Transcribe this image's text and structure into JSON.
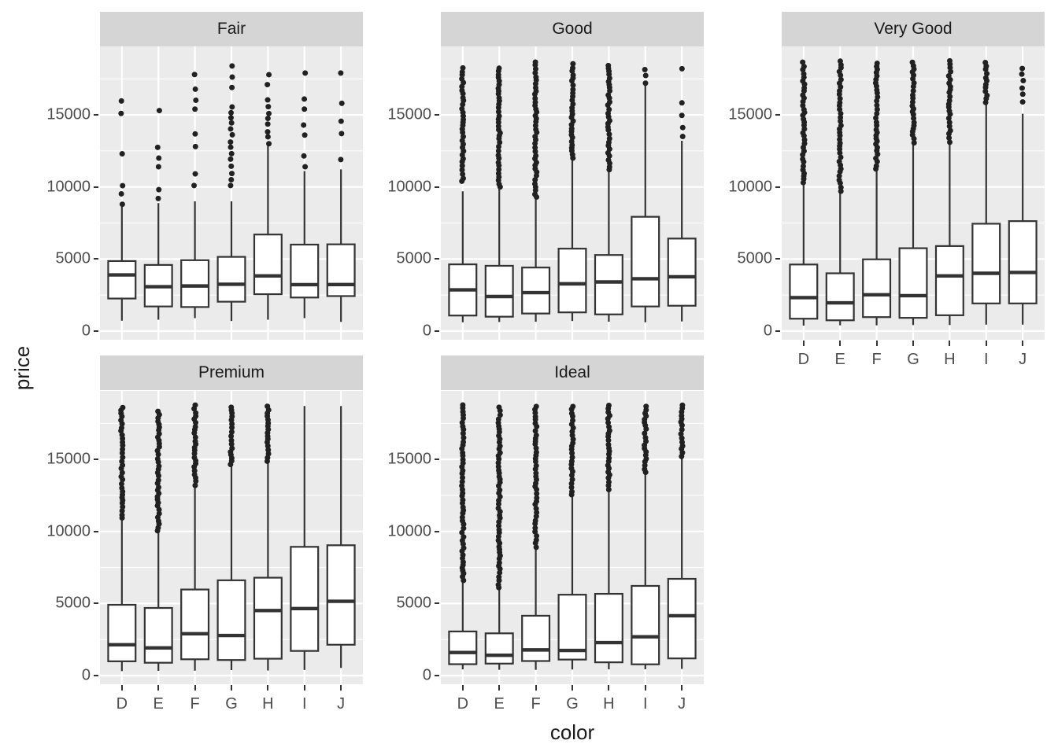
{
  "chart_data": {
    "type": "boxplot",
    "title": "",
    "xlabel": "color",
    "ylabel": "price",
    "legend": "none",
    "grid": "on",
    "categories": [
      "D",
      "E",
      "F",
      "G",
      "H",
      "I",
      "J"
    ],
    "y_ticks": [
      {
        "value": 0,
        "label": "0"
      },
      {
        "value": 5000,
        "label": "5000"
      },
      {
        "value": 10000,
        "label": "10000"
      },
      {
        "value": 15000,
        "label": "15000"
      }
    ],
    "y_minor_ticks": [
      2500,
      7500,
      12500,
      17500
    ],
    "ylim": [
      -600,
      19750
    ],
    "colors": {
      "panel_bg": "#EBEBEB",
      "strip_bg": "#D5D5D5",
      "grid_major": "#FFFFFF",
      "grid_minor": "#FFFFFF",
      "box_stroke": "#333333",
      "box_fill": "#FFFFFF",
      "outlier_dot": "#212121",
      "tick_text": "#4D4D4D",
      "strip_text": "#1A1A1A",
      "axis_title_text": "#1A1A1A"
    },
    "facets": [
      {
        "label": "Fair",
        "boxes": [
          {
            "category": "D",
            "whisker_low": 720,
            "q1": 2260,
            "median": 3900,
            "q3": 4860,
            "whisker_high": 8640,
            "outliers": [
              {
                "from": 8800,
                "to": 10300,
                "density": "sparse"
              },
              {
                "from": 12300,
                "to": 12900,
                "density": "sparse"
              },
              {
                "from": 15100,
                "to": 16400,
                "density": "sparse"
              }
            ]
          },
          {
            "category": "E",
            "whisker_low": 790,
            "q1": 1710,
            "median": 3080,
            "q3": 4590,
            "whisker_high": 8880,
            "outliers": [
              {
                "from": 9200,
                "to": 10300,
                "density": "sparse"
              },
              {
                "from": 11400,
                "to": 13300,
                "density": "sparse"
              },
              {
                "from": 15300,
                "to": 15800,
                "density": "sparse"
              }
            ]
          },
          {
            "category": "F",
            "whisker_low": 900,
            "q1": 1670,
            "median": 3130,
            "q3": 4920,
            "whisker_high": 9000,
            "outliers": [
              {
                "from": 10100,
                "to": 11600,
                "density": "sparse"
              },
              {
                "from": 12800,
                "to": 14300,
                "density": "sparse"
              },
              {
                "from": 15400,
                "to": 17000,
                "density": "sparse"
              },
              {
                "from": 17800,
                "to": 18400,
                "density": "sparse"
              }
            ]
          },
          {
            "category": "G",
            "whisker_low": 700,
            "q1": 2040,
            "median": 3250,
            "q3": 5150,
            "whisker_high": 9000,
            "outliers": [
              {
                "from": 10100,
                "to": 15900,
                "density": "medium"
              },
              {
                "from": 16900,
                "to": 18600,
                "density": "sparse"
              }
            ]
          },
          {
            "category": "H",
            "whisker_low": 790,
            "q1": 2560,
            "median": 3830,
            "q3": 6700,
            "whisker_high": 12880,
            "outliers": [
              {
                "from": 13000,
                "to": 16400,
                "density": "medium"
              },
              {
                "from": 17100,
                "to": 18600,
                "density": "sparse"
              }
            ]
          },
          {
            "category": "I",
            "whisker_low": 900,
            "q1": 2330,
            "median": 3220,
            "q3": 6000,
            "whisker_high": 11100,
            "outliers": [
              {
                "from": 11400,
                "to": 12300,
                "density": "sparse"
              },
              {
                "from": 13600,
                "to": 14400,
                "density": "sparse"
              },
              {
                "from": 15400,
                "to": 16300,
                "density": "sparse"
              },
              {
                "from": 17900,
                "to": 18300,
                "density": "sparse"
              }
            ]
          },
          {
            "category": "J",
            "whisker_low": 640,
            "q1": 2430,
            "median": 3230,
            "q3": 6020,
            "whisker_high": 11220,
            "outliers": [
              {
                "from": 11900,
                "to": 12300,
                "density": "sparse"
              },
              {
                "from": 13700,
                "to": 15100,
                "density": "sparse"
              },
              {
                "from": 15800,
                "to": 16300,
                "density": "sparse"
              },
              {
                "from": 17900,
                "to": 18300,
                "density": "sparse"
              }
            ]
          }
        ]
      },
      {
        "label": "Good",
        "boxes": [
          {
            "category": "D",
            "whisker_low": 610,
            "q1": 1080,
            "median": 2860,
            "q3": 4630,
            "whisker_high": 9700,
            "outliers": [
              {
                "from": 10400,
                "to": 18500,
                "density": "dense"
              }
            ]
          },
          {
            "category": "E",
            "whisker_low": 630,
            "q1": 1000,
            "median": 2400,
            "q3": 4530,
            "whisker_high": 9900,
            "outliers": [
              {
                "from": 10000,
                "to": 18300,
                "density": "dense"
              }
            ]
          },
          {
            "category": "F",
            "whisker_low": 650,
            "q1": 1220,
            "median": 2670,
            "q3": 4410,
            "whisker_high": 9200,
            "outliers": [
              {
                "from": 9300,
                "to": 18700,
                "density": "dense"
              }
            ]
          },
          {
            "category": "G",
            "whisker_low": 700,
            "q1": 1300,
            "median": 3280,
            "q3": 5720,
            "whisker_high": 11900,
            "outliers": [
              {
                "from": 12000,
                "to": 18700,
                "density": "dense"
              }
            ]
          },
          {
            "category": "H",
            "whisker_low": 650,
            "q1": 1160,
            "median": 3410,
            "q3": 5280,
            "whisker_high": 11100,
            "outliers": [
              {
                "from": 11200,
                "to": 18600,
                "density": "dense"
              }
            ]
          },
          {
            "category": "I",
            "whisker_low": 610,
            "q1": 1710,
            "median": 3630,
            "q3": 7930,
            "whisker_high": 17100,
            "outliers": [
              {
                "from": 17200,
                "to": 18500,
                "density": "medium"
              }
            ]
          },
          {
            "category": "J",
            "whisker_low": 670,
            "q1": 1760,
            "median": 3770,
            "q3": 6420,
            "whisker_high": 13200,
            "outliers": [
              {
                "from": 13500,
                "to": 16300,
                "density": "sparse"
              },
              {
                "from": 18200,
                "to": 18400,
                "density": "sparse"
              }
            ]
          }
        ]
      },
      {
        "label": "Very Good",
        "boxes": [
          {
            "category": "D",
            "whisker_low": 380,
            "q1": 860,
            "median": 2320,
            "q3": 4620,
            "whisker_high": 10200,
            "outliers": [
              {
                "from": 10300,
                "to": 18820,
                "density": "dense"
              }
            ]
          },
          {
            "category": "E",
            "whisker_low": 400,
            "q1": 750,
            "median": 1960,
            "q3": 4010,
            "whisker_high": 9600,
            "outliers": [
              {
                "from": 9700,
                "to": 18820,
                "density": "dense"
              }
            ]
          },
          {
            "category": "F",
            "whisker_low": 400,
            "q1": 970,
            "median": 2520,
            "q3": 4980,
            "whisker_high": 11150,
            "outliers": [
              {
                "from": 11250,
                "to": 18820,
                "density": "dense"
              }
            ]
          },
          {
            "category": "G",
            "whisker_low": 420,
            "q1": 920,
            "median": 2460,
            "q3": 5750,
            "whisker_high": 12960,
            "outliers": [
              {
                "from": 13060,
                "to": 18820,
                "density": "dense"
              }
            ]
          },
          {
            "category": "H",
            "whisker_low": 420,
            "q1": 1100,
            "median": 3830,
            "q3": 5900,
            "whisker_high": 13000,
            "outliers": [
              {
                "from": 13100,
                "to": 18820,
                "density": "dense"
              }
            ]
          },
          {
            "category": "I",
            "whisker_low": 450,
            "q1": 1920,
            "median": 4010,
            "q3": 7450,
            "whisker_high": 15760,
            "outliers": [
              {
                "from": 15860,
                "to": 18820,
                "density": "dense"
              }
            ]
          },
          {
            "category": "J",
            "whisker_low": 450,
            "q1": 1920,
            "median": 4070,
            "q3": 7630,
            "whisker_high": 15080,
            "outliers": [
              {
                "from": 15900,
                "to": 18500,
                "density": "medium"
              }
            ]
          }
        ]
      },
      {
        "label": "Premium",
        "boxes": [
          {
            "category": "D",
            "whisker_low": 310,
            "q1": 990,
            "median": 2140,
            "q3": 4910,
            "whisker_high": 10840,
            "outliers": [
              {
                "from": 10940,
                "to": 18700,
                "density": "dense"
              }
            ]
          },
          {
            "category": "E",
            "whisker_low": 330,
            "q1": 890,
            "median": 1920,
            "q3": 4690,
            "whisker_high": 9950,
            "outliers": [
              {
                "from": 10050,
                "to": 18500,
                "density": "dense"
              }
            ]
          },
          {
            "category": "F",
            "whisker_low": 340,
            "q1": 1130,
            "median": 2900,
            "q3": 5970,
            "whisker_high": 13090,
            "outliers": [
              {
                "from": 13190,
                "to": 18820,
                "density": "dense"
              }
            ]
          },
          {
            "category": "G",
            "whisker_low": 380,
            "q1": 1080,
            "median": 2780,
            "q3": 6610,
            "whisker_high": 14550,
            "outliers": [
              {
                "from": 14650,
                "to": 18750,
                "density": "dense"
              }
            ]
          },
          {
            "category": "H",
            "whisker_low": 350,
            "q1": 1170,
            "median": 4510,
            "q3": 6790,
            "whisker_high": 14770,
            "outliers": [
              {
                "from": 14870,
                "to": 18820,
                "density": "dense"
              }
            ]
          },
          {
            "category": "I",
            "whisker_low": 390,
            "q1": 1710,
            "median": 4650,
            "q3": 8930,
            "whisker_high": 18700,
            "outliers": []
          },
          {
            "category": "J",
            "whisker_low": 530,
            "q1": 2140,
            "median": 5150,
            "q3": 9040,
            "whisker_high": 18700,
            "outliers": []
          }
        ]
      },
      {
        "label": "Ideal",
        "boxes": [
          {
            "category": "D",
            "whisker_low": 430,
            "q1": 790,
            "median": 1600,
            "q3": 3060,
            "whisker_high": 6500,
            "outliers": [
              {
                "from": 6600,
                "to": 18820,
                "density": "dense"
              }
            ]
          },
          {
            "category": "E",
            "whisker_low": 400,
            "q1": 830,
            "median": 1410,
            "q3": 2930,
            "whisker_high": 6000,
            "outliers": [
              {
                "from": 6100,
                "to": 18820,
                "density": "dense"
              }
            ]
          },
          {
            "category": "F",
            "whisker_low": 400,
            "q1": 1010,
            "median": 1780,
            "q3": 4150,
            "whisker_high": 8800,
            "outliers": [
              {
                "from": 8900,
                "to": 18820,
                "density": "dense"
              }
            ]
          },
          {
            "category": "G",
            "whisker_low": 420,
            "q1": 1110,
            "median": 1740,
            "q3": 5610,
            "whisker_high": 12450,
            "outliers": [
              {
                "from": 12550,
                "to": 18820,
                "density": "dense"
              }
            ]
          },
          {
            "category": "H",
            "whisker_low": 430,
            "q1": 920,
            "median": 2290,
            "q3": 5670,
            "whisker_high": 12800,
            "outliers": [
              {
                "from": 12900,
                "to": 18820,
                "density": "dense"
              }
            ]
          },
          {
            "category": "I",
            "whisker_low": 440,
            "q1": 780,
            "median": 2690,
            "q3": 6220,
            "whisker_high": 14000,
            "outliers": [
              {
                "from": 14100,
                "to": 18820,
                "density": "dense"
              }
            ]
          },
          {
            "category": "J",
            "whisker_low": 460,
            "q1": 1190,
            "median": 4150,
            "q3": 6710,
            "whisker_high": 15100,
            "outliers": [
              {
                "from": 15200,
                "to": 18820,
                "density": "dense"
              }
            ]
          }
        ]
      }
    ]
  }
}
